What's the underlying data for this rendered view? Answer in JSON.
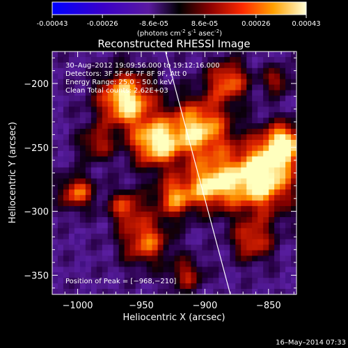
{
  "colorbar": {
    "tick_labels": [
      "-0.00043",
      "-0.00026",
      "-8.6e-05",
      "8.6e-05",
      "0.00026",
      "0.00043"
    ],
    "tick_values": [
      -0.00043,
      -0.00026,
      -8.6e-05,
      8.6e-05,
      0.00026,
      0.00043
    ],
    "units_prefix": "(photons cm",
    "units_sup1": "-2",
    "units_mid": " s",
    "units_sup2": "-1",
    "units_mid2": " asec",
    "units_sup3": "-2",
    "units_suffix": ")",
    "range": [
      -0.00043,
      0.00043
    ]
  },
  "chart_data": {
    "type": "heatmap",
    "title": "Reconstructed RHESSI Image",
    "xlabel": "Heliocentric X (arcsec)",
    "ylabel": "Heliocentric Y (arcsec)",
    "xlim": [
      -1020,
      -828
    ],
    "ylim": [
      -365,
      -175
    ],
    "x_ticks": [
      -1000,
      -950,
      -900,
      -850
    ],
    "x_tick_labels": [
      "−1000",
      "−950",
      "−900",
      "−850"
    ],
    "y_ticks": [
      -200,
      -250,
      -300,
      -350
    ],
    "y_tick_labels": [
      "−200",
      "−250",
      "−300",
      "−350"
    ],
    "limb_line": {
      "points": [
        [
          -931,
          -175
        ],
        [
          -880,
          -365
        ]
      ]
    },
    "annotations": {
      "time": "30–Aug–2012 19:09:56.000 to 19:12:16.000",
      "detectors": "Detectors: 3F 5F 6F 7F 8F 9F, Att 0",
      "energy": "Energy Range: 25.0 – 50.0 keV",
      "clean": "Clean     Total counts: 2.62E+03",
      "peak": "Position of Peak = [−968,−210]"
    }
  },
  "footer": {
    "timestamp": "16–May–2014 07:33"
  }
}
